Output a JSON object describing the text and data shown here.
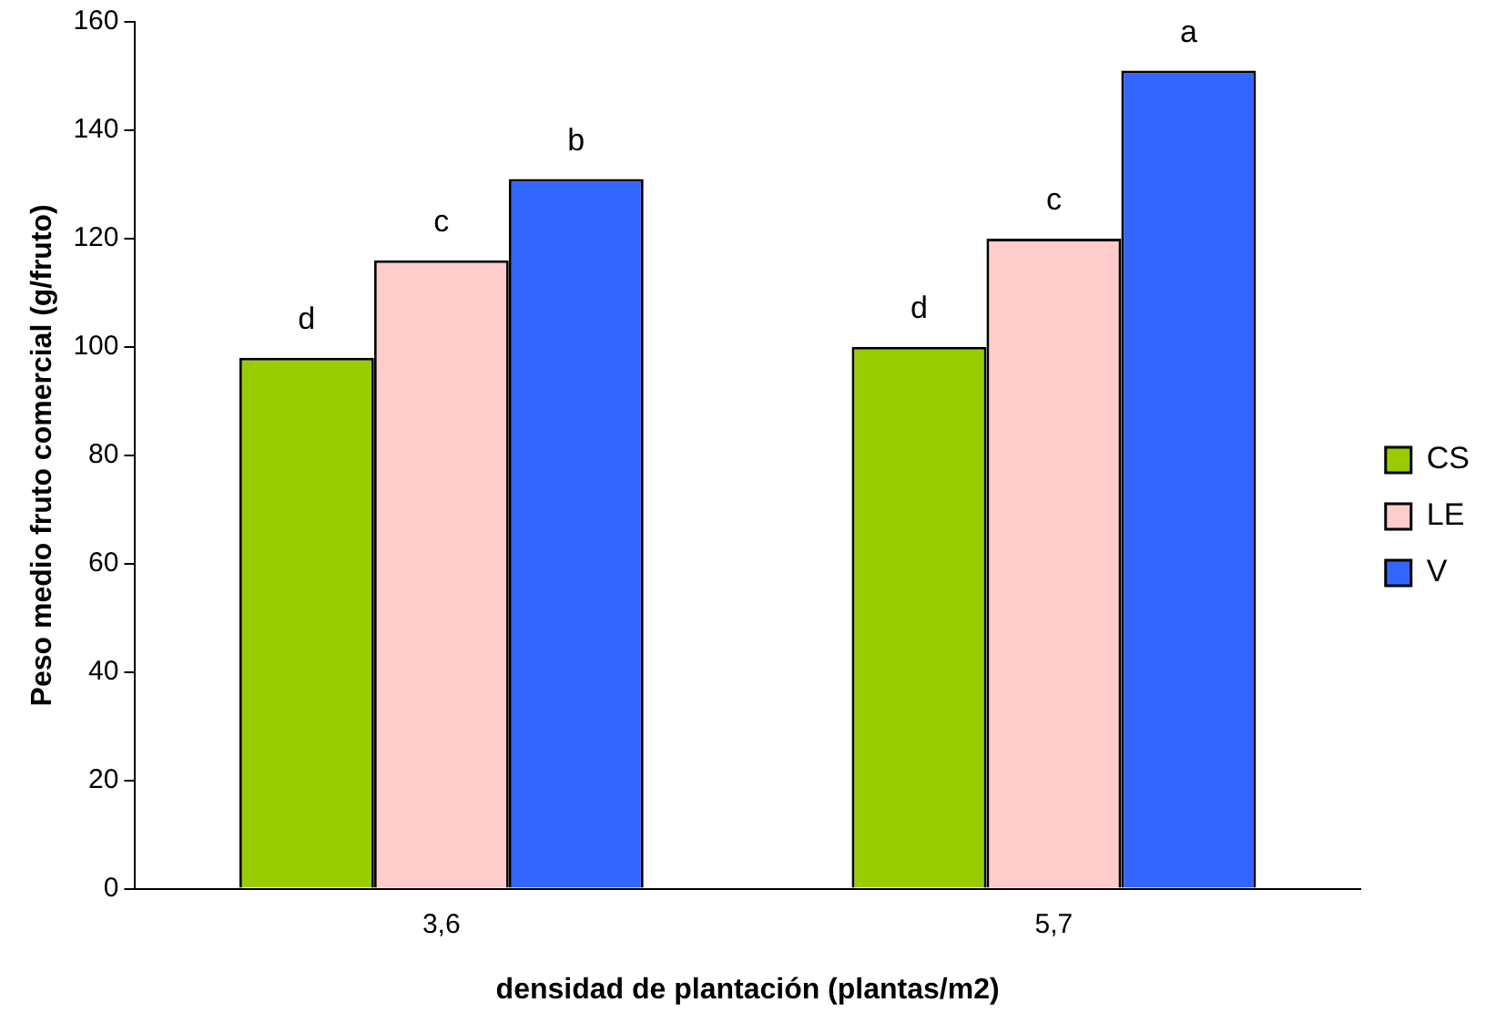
{
  "chart_data": {
    "type": "bar",
    "xlabel": "densidad de plantación (plantas/m2)",
    "ylabel": "Peso medio fruto comercial (g/fruto)",
    "categories": [
      "3,6",
      "5,7"
    ],
    "series": [
      {
        "name": "CS",
        "color": "#99cc00",
        "values": [
          98,
          100
        ],
        "value_labels": [
          "d",
          "d"
        ]
      },
      {
        "name": "LE",
        "color": "#ffcccc",
        "values": [
          116,
          120
        ],
        "value_labels": [
          "c",
          "c"
        ]
      },
      {
        "name": "V",
        "color": "#3366ff",
        "values": [
          131,
          151
        ],
        "value_labels": [
          "b",
          "a"
        ]
      }
    ],
    "ylim": [
      0,
      160
    ],
    "yticks": [
      0,
      20,
      40,
      60,
      80,
      100,
      120,
      140,
      160
    ],
    "grid": false,
    "legend": "right"
  }
}
